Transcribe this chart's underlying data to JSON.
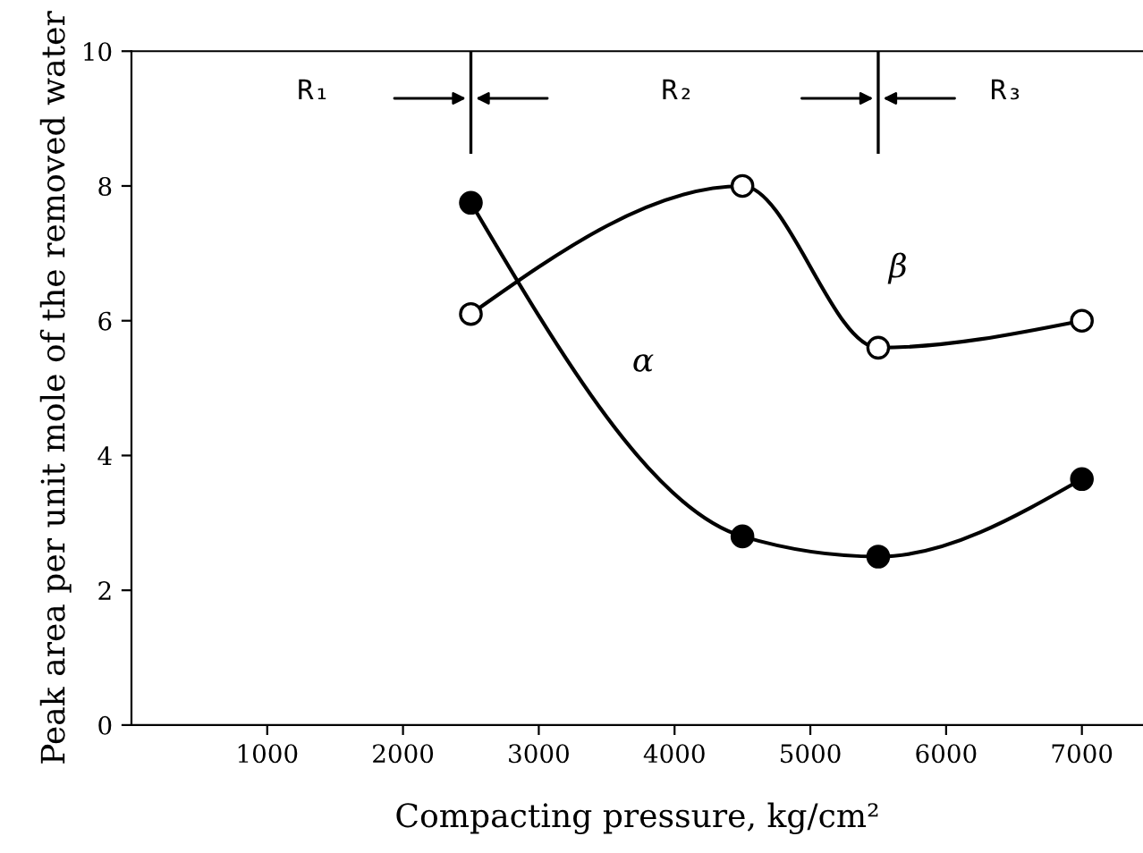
{
  "chart_data": {
    "type": "line",
    "xlabel": "Compacting pressure, kg/cm²",
    "ylabel": "Peak area per unit mole of the removed water",
    "x": [
      2500,
      4500,
      5500,
      7000
    ],
    "series": [
      {
        "name": "α",
        "color": "#000000",
        "values": [
          7.75,
          2.8,
          2.5,
          3.65
        ]
      },
      {
        "name": "β",
        "color": "#000000",
        "values": [
          6.1,
          8.0,
          5.6,
          6.0
        ]
      }
    ],
    "xlim": [
      0,
      7450
    ],
    "ylim": [
      0,
      10
    ],
    "xticks": [
      1000,
      2000,
      3000,
      4000,
      5000,
      6000,
      7000
    ],
    "yticks": [
      0,
      2,
      4,
      6,
      8,
      10
    ],
    "ref_lines": [
      {
        "axis": "x",
        "value": 2500
      },
      {
        "axis": "x",
        "value": 5500
      }
    ],
    "annotations": [
      "R₁",
      "R₂",
      "R₃"
    ],
    "marker": "circle",
    "grid": false,
    "legend": false
  }
}
